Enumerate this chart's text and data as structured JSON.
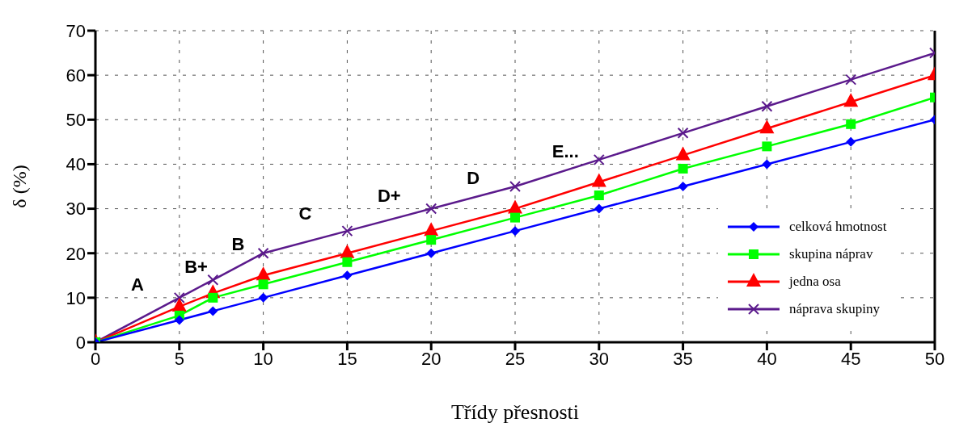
{
  "chart_data": {
    "type": "line",
    "xlabel": "Třídy přesnosti",
    "ylabel": "δ (%)",
    "x": [
      0,
      5,
      7,
      10,
      15,
      20,
      25,
      30,
      35,
      40,
      45,
      50
    ],
    "series": [
      {
        "name": "celková hmotnost",
        "color": "#0000ff",
        "marker": "diamond",
        "values": [
          0,
          5,
          7,
          10,
          15,
          20,
          25,
          30,
          35,
          40,
          45,
          50
        ]
      },
      {
        "name": "skupina náprav",
        "color": "#00ff00",
        "marker": "square",
        "values": [
          0,
          6,
          10,
          13,
          18,
          23,
          28,
          33,
          39,
          44,
          49,
          55
        ]
      },
      {
        "name": "jedna osa",
        "color": "#ff0000",
        "marker": "triangle",
        "values": [
          0,
          8,
          11,
          15,
          20,
          25,
          30,
          36,
          42,
          48,
          54,
          60
        ]
      },
      {
        "name": "náprava skupiny",
        "color": "#5b1a8c",
        "marker": "cross",
        "values": [
          0,
          10,
          14,
          20,
          25,
          30,
          35,
          41,
          47,
          53,
          59,
          65
        ]
      }
    ],
    "xlim": [
      0,
      50
    ],
    "xticks": [
      0,
      5,
      10,
      15,
      20,
      25,
      30,
      35,
      40,
      45,
      50
    ],
    "ylim": [
      0,
      70
    ],
    "yticks": [
      0,
      10,
      20,
      30,
      40,
      50,
      60,
      70
    ],
    "grid": true,
    "legend": "bottom right",
    "line_style": "solid",
    "annotations": [
      "A",
      "B+",
      "B",
      "C",
      "D+",
      "D",
      "E..."
    ]
  }
}
